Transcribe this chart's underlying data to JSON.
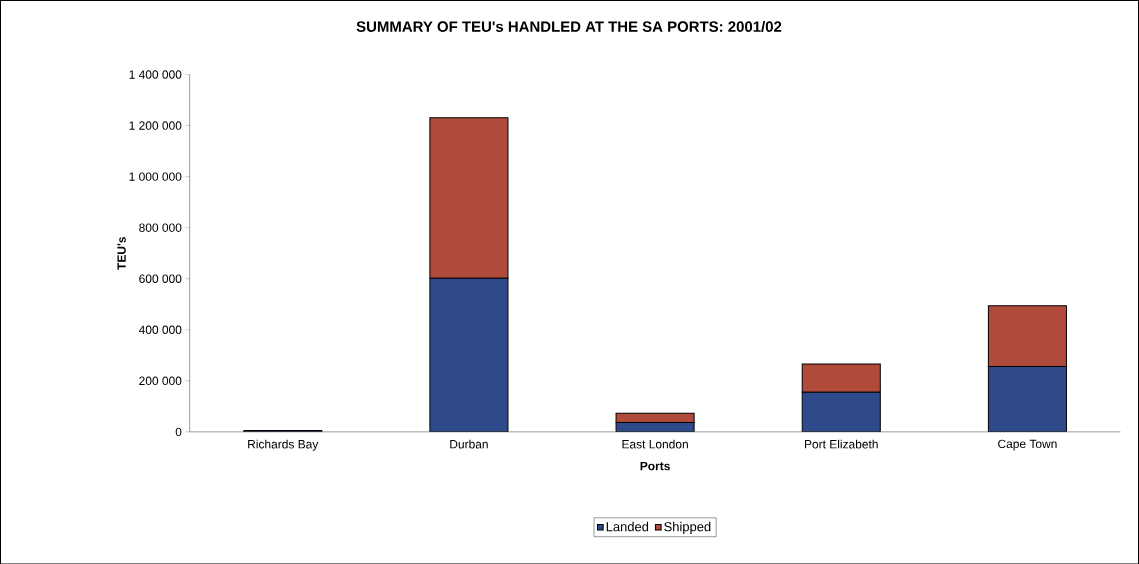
{
  "chart_data": {
    "type": "bar",
    "title": "SUMMARY OF TEU's HANDLED AT THE SA PORTS: 2001/02",
    "xlabel": "Ports",
    "ylabel": "TEU's",
    "categories": [
      "Richards Bay",
      "Durban",
      "East London",
      "Port Elizabeth",
      "Cape Town"
    ],
    "stacked": true,
    "series": [
      {
        "name": "Landed",
        "color": "#2e4a8a",
        "values": [
          5000,
          602000,
          37000,
          155000,
          256000
        ]
      },
      {
        "name": "Shipped",
        "color": "#b04a3a",
        "values": [
          null,
          629000,
          36000,
          111000,
          238000
        ]
      }
    ],
    "ylim": [
      0,
      1400000
    ],
    "yticks": [
      {
        "value": 0,
        "label": "0"
      },
      {
        "value": 200000,
        "label": "200 000"
      },
      {
        "value": 400000,
        "label": "400 000"
      },
      {
        "value": 600000,
        "label": "600 000"
      },
      {
        "value": 800000,
        "label": "800 000"
      },
      {
        "value": 1000000,
        "label": "1 000 000"
      },
      {
        "value": 1200000,
        "label": "1 200 000"
      },
      {
        "value": 1400000,
        "label": "1 400 000"
      }
    ],
    "grid": false,
    "legend": "bottom"
  }
}
